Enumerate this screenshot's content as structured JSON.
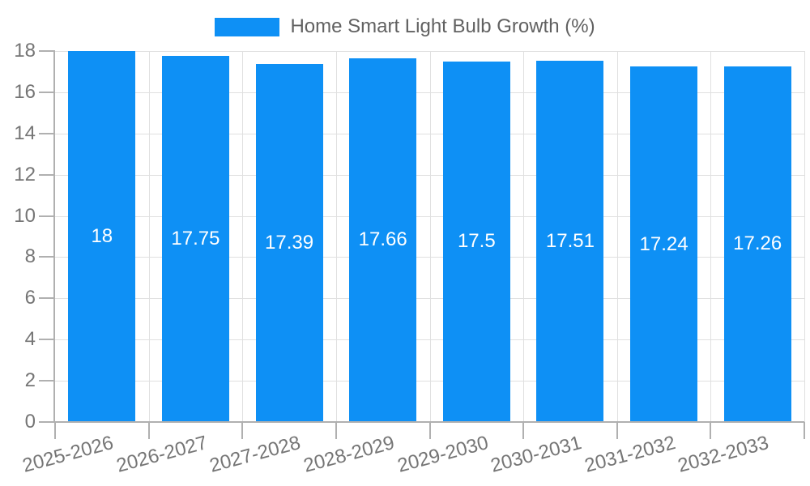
{
  "chart_data": {
    "type": "bar",
    "title": "Home Smart Light Bulb Growth (%)",
    "categories": [
      "2025-2026",
      "2026-2027",
      "2027-2028",
      "2028-2029",
      "2029-2030",
      "2030-2031",
      "2031-2032",
      "2032-2033"
    ],
    "series": [
      {
        "name": "Home Smart Light Bulb Growth (%)",
        "values": [
          18,
          17.75,
          17.39,
          17.66,
          17.5,
          17.51,
          17.24,
          17.26
        ],
        "labels": [
          "18",
          "17.75",
          "17.39",
          "17.66",
          "17.5",
          "17.51",
          "17.24",
          "17.26"
        ]
      }
    ],
    "xlabel": "",
    "ylabel": "",
    "ylim": [
      0,
      18
    ],
    "yticks": [
      0,
      2,
      4,
      6,
      8,
      10,
      12,
      14,
      16,
      18
    ],
    "grid": true,
    "legend_position": "top-center",
    "x_tick_rotation_deg": -15,
    "colors": {
      "bar": "#0e90f5",
      "grid": "#e0e0e0",
      "axis": "#b0b0b0",
      "tick_label": "#757575",
      "title": "#616161",
      "value_label": "#ffffff",
      "background": "#ffffff"
    }
  },
  "legend": {
    "label": "Home Smart Light Bulb Growth (%)"
  }
}
